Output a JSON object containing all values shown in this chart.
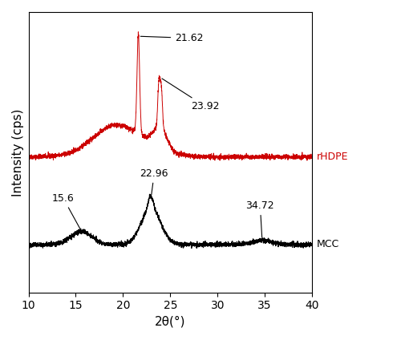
{
  "xlim": [
    10,
    40
  ],
  "ylabel": "Intensity (cps)",
  "xlabel": "2θ(°)",
  "rhdpe_color": "#cc0000",
  "mcc_color": "#000000",
  "rhdpe_label": "rHDPE",
  "mcc_label": "MCC",
  "figsize": [
    5.0,
    4.24
  ],
  "dpi": 100,
  "rhdpe_baseline": 0.52,
  "mcc_baseline": 0.15,
  "ylim": [
    -0.05,
    1.08
  ]
}
